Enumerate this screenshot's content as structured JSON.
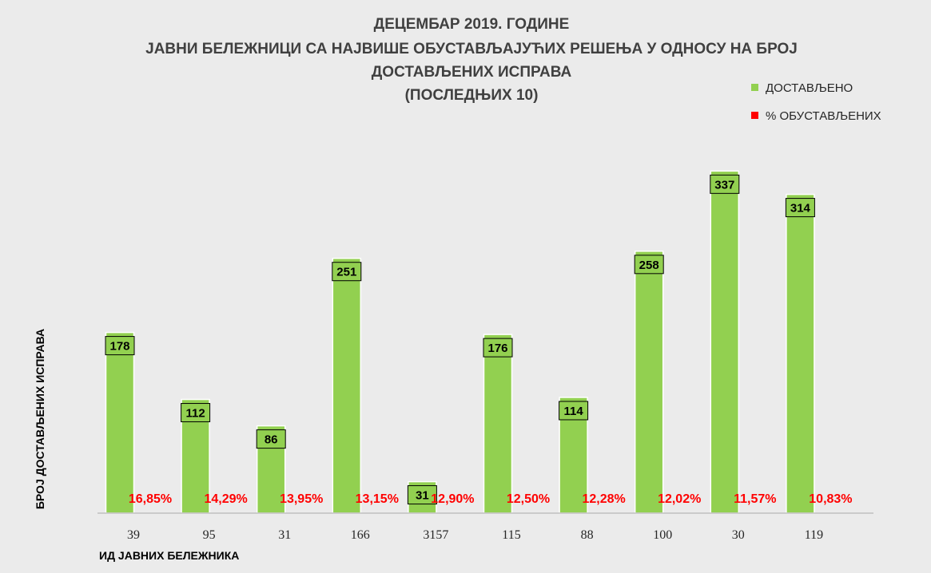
{
  "chart_data": {
    "type": "bar",
    "title": [
      "ДЕЦЕМБАР 2019. ГОДИНЕ",
      "ЈАВНИ БЕЛЕЖНИЦИ СА НАЈВИШЕ ОБУСТАВЉАЈУЋИХ РЕШЕЊА У ОДНОСУ НА БРОЈ",
      "ДОСТАВЉЕНИХ ИСПРАВА",
      "(ПОСЛЕДЊИХ 10)"
    ],
    "xlabel": "ИД ЈАВНИХ БЕЛЕЖНИКА",
    "ylabel": "БРОЈ ДОСТАВЉЕНИХ ИСПРАВА",
    "categories": [
      "39",
      "95",
      "31",
      "166",
      "3157",
      "115",
      "88",
      "100",
      "30",
      "119"
    ],
    "series": [
      {
        "name": "ДОСТАВЉЕНО",
        "color": "#92d050",
        "values": [
          178,
          112,
          86,
          251,
          31,
          176,
          114,
          258,
          337,
          314
        ]
      },
      {
        "name": "% ОБУСТАВЉЕНИХ",
        "color": "#ff0000",
        "values": [
          16.85,
          14.29,
          13.95,
          13.15,
          12.9,
          12.5,
          12.28,
          12.02,
          11.57,
          10.83
        ],
        "labels": [
          "16,85%",
          "14,29%",
          "13,95%",
          "13,15%",
          "12,90%",
          "12,50%",
          "12,28%",
          "12,02%",
          "11,57%",
          "10,83%"
        ]
      }
    ],
    "legend_position": "top-right",
    "grid": false
  }
}
